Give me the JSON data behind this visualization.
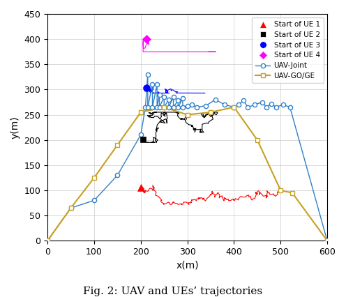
{
  "title": "Fig. 2: UAV and UEs’ trajectories",
  "xlabel": "x(m)",
  "ylabel": "y(m)",
  "xlim": [
    0,
    600
  ],
  "ylim": [
    0,
    450
  ],
  "xticks": [
    0,
    100,
    200,
    300,
    400,
    500,
    600
  ],
  "yticks": [
    0,
    50,
    100,
    150,
    200,
    250,
    300,
    350,
    400,
    450
  ],
  "uav_joint_color": "#3080C8",
  "uav_goge_color": "#C8A020",
  "ue1_color": "#FF0000",
  "ue2_color": "#000000",
  "ue3_color": "#0000FF",
  "ue4_color": "#FF00FF",
  "ue1_start_x": 200,
  "ue1_start_y": 105,
  "ue2_start_x": 205,
  "ue2_start_y": 201,
  "ue3_start_x": 213,
  "ue3_start_y": 303,
  "ue4_start_x": 213,
  "ue4_start_y": 400,
  "figsize": [
    4.96,
    4.26
  ],
  "dpi": 100
}
